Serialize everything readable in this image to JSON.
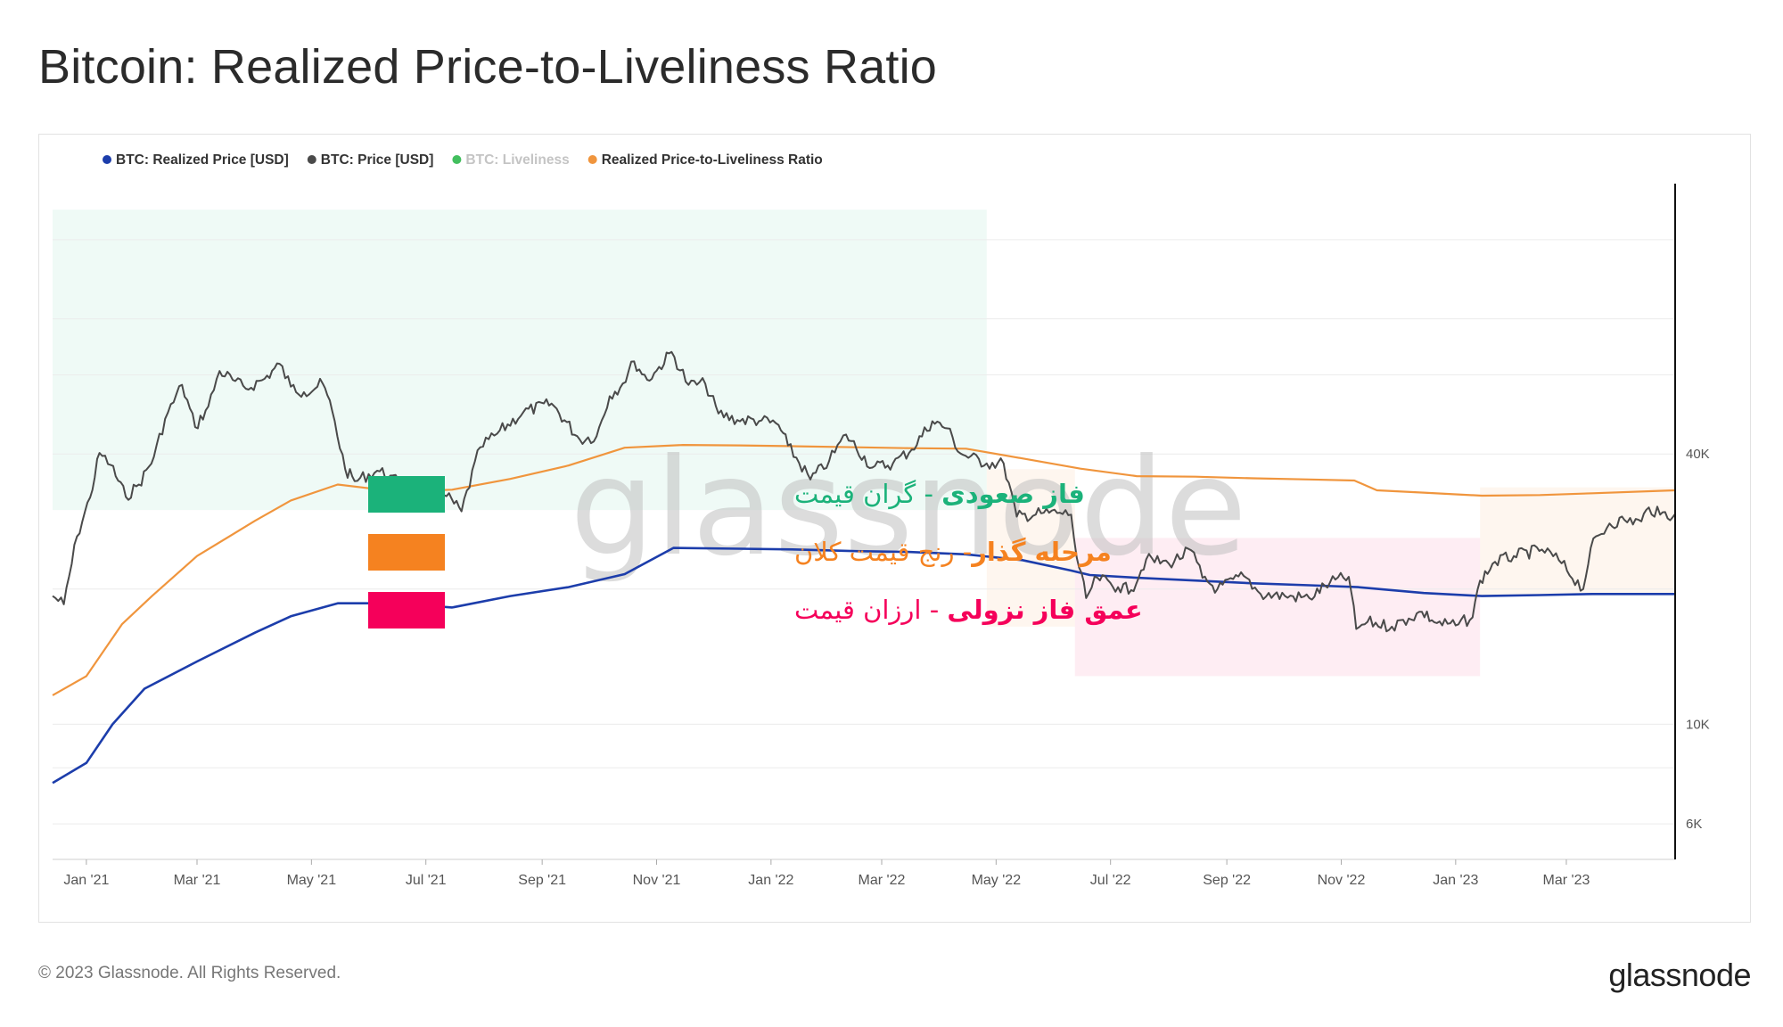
{
  "title": "Bitcoin: Realized Price-to-Liveliness Ratio",
  "footer": {
    "copyright": "© 2023 Glassnode. All Rights Reserved.",
    "logo": "glassnode"
  },
  "watermark": "glassnode",
  "colors": {
    "realized_price": "#1c3dab",
    "price": "#4a4a4a",
    "liveliness": "#2db84d",
    "ratio": "#f0953d",
    "zone_green": "#1bb27a",
    "zone_orange": "#f58220",
    "zone_pink": "#f5005a"
  },
  "annotations": [
    {
      "bold": "فاز صعودی",
      "sep": " - ",
      "text": "گران قیمت",
      "color": "#1bb27a"
    },
    {
      "bold": "مرحله گذار",
      "sep": "- ",
      "text": "رنج قیمت کلان",
      "color": "#f58220"
    },
    {
      "bold": "عمق فاز نزولی",
      "sep": " - ",
      "text": "ارزان قیمت",
      "color": "#f5005a"
    }
  ],
  "chart_data": {
    "type": "line",
    "title": "Bitcoin: Realized Price-to-Liveliness Ratio",
    "xlabel": "",
    "ylabel": "",
    "y_scale": "log",
    "ylim": [
      5000,
      160000
    ],
    "x_range": [
      "2020-12-14",
      "2023-04-28"
    ],
    "grid": true,
    "legend_position": "top-left",
    "legend": [
      {
        "name": "BTC: Realized Price [USD]",
        "color": "#1c3dab",
        "enabled": true
      },
      {
        "name": "BTC: Price [USD]",
        "color": "#4a4a4a",
        "enabled": true
      },
      {
        "name": "BTC: Liveliness",
        "color": "#2db84d",
        "enabled": false
      },
      {
        "name": "Realized Price-to-Liveliness Ratio",
        "color": "#f0953d",
        "enabled": true
      }
    ],
    "x_ticks": [
      {
        "label": "Jan '21",
        "date": "2021-01-01"
      },
      {
        "label": "Mar '21",
        "date": "2021-03-01"
      },
      {
        "label": "May '21",
        "date": "2021-05-01"
      },
      {
        "label": "Jul '21",
        "date": "2021-07-01"
      },
      {
        "label": "Sep '21",
        "date": "2021-09-01"
      },
      {
        "label": "Nov '21",
        "date": "2021-11-01"
      },
      {
        "label": "Jan '22",
        "date": "2022-01-01"
      },
      {
        "label": "Mar '22",
        "date": "2022-03-01"
      },
      {
        "label": "May '22",
        "date": "2022-05-01"
      },
      {
        "label": "Jul '22",
        "date": "2022-07-01"
      },
      {
        "label": "Sep '22",
        "date": "2022-09-01"
      },
      {
        "label": "Nov '22",
        "date": "2022-11-01"
      },
      {
        "label": "Jan '23",
        "date": "2023-01-01"
      },
      {
        "label": "Mar '23",
        "date": "2023-03-01"
      }
    ],
    "y_ticks": [
      {
        "label": "6K",
        "value": 6000
      },
      {
        "label": "10K",
        "value": 10000
      },
      {
        "label": "40K",
        "value": 40000
      }
    ],
    "zones": [
      {
        "name": "bull",
        "start": "2020-12-14",
        "end": "2022-04-26",
        "y_low": 30000,
        "y_high": 140000,
        "color": "#1bb27a"
      },
      {
        "name": "transition-1",
        "start": "2022-04-26",
        "end": "2022-06-12",
        "y_low": 16500,
        "y_high": 37000,
        "color": "#f58220"
      },
      {
        "name": "bear-depth",
        "start": "2022-06-12",
        "end": "2023-01-14",
        "y_low": 12800,
        "y_high": 26000,
        "color": "#f5005a"
      },
      {
        "name": "transition-2",
        "start": "2023-01-14",
        "end": "2023-04-28",
        "y_low": 19400,
        "y_high": 33700,
        "color": "#f58220"
      }
    ],
    "series": [
      {
        "name": "BTC: Price [USD]",
        "x": [
          "2020-12-14",
          "2020-12-20",
          "2020-12-27",
          "2021-01-03",
          "2021-01-08",
          "2021-01-14",
          "2021-01-22",
          "2021-01-29",
          "2021-02-06",
          "2021-02-12",
          "2021-02-21",
          "2021-02-28",
          "2021-03-07",
          "2021-03-13",
          "2021-03-20",
          "2021-03-27",
          "2021-04-06",
          "2021-04-14",
          "2021-04-20",
          "2021-04-27",
          "2021-05-07",
          "2021-05-12",
          "2021-05-19",
          "2021-05-24",
          "2021-06-05",
          "2021-06-12",
          "2021-06-22",
          "2021-07-01",
          "2021-07-12",
          "2021-07-20",
          "2021-07-30",
          "2021-08-08",
          "2021-08-22",
          "2021-09-06",
          "2021-09-21",
          "2021-09-30",
          "2021-10-07",
          "2021-10-14",
          "2021-10-20",
          "2021-10-27",
          "2021-11-01",
          "2021-11-09",
          "2021-11-18",
          "2021-11-27",
          "2021-12-04",
          "2021-12-14",
          "2021-12-27",
          "2022-01-05",
          "2022-01-10",
          "2022-01-22",
          "2022-02-01",
          "2022-02-10",
          "2022-02-24",
          "2022-03-07",
          "2022-03-17",
          "2022-03-28",
          "2022-04-05",
          "2022-04-12",
          "2022-04-26",
          "2022-05-05",
          "2022-05-12",
          "2022-05-25",
          "2022-06-04",
          "2022-06-10",
          "2022-06-13",
          "2022-06-18",
          "2022-06-24",
          "2022-07-05",
          "2022-07-12",
          "2022-07-20",
          "2022-08-01",
          "2022-08-13",
          "2022-08-19",
          "2022-08-27",
          "2022-09-10",
          "2022-09-19",
          "2022-10-02",
          "2022-10-15",
          "2022-10-26",
          "2022-11-05",
          "2022-11-09",
          "2022-11-15",
          "2022-11-28",
          "2022-12-07",
          "2022-12-14",
          "2022-12-22",
          "2023-01-01",
          "2023-01-10",
          "2023-01-14",
          "2023-01-22",
          "2023-02-01",
          "2023-02-16",
          "2023-02-25",
          "2023-03-10",
          "2023-03-14",
          "2023-03-24",
          "2023-04-01",
          "2023-04-10",
          "2023-04-14",
          "2023-04-20",
          "2023-04-28"
        ],
        "values": [
          19300,
          18500,
          26200,
          32000,
          40200,
          37800,
          32100,
          34200,
          39400,
          47900,
          57000,
          45900,
          51000,
          61200,
          58500,
          55900,
          58800,
          63500,
          56500,
          54900,
          57400,
          50000,
          37000,
          34800,
          36700,
          35800,
          32500,
          33600,
          32200,
          29800,
          41400,
          44400,
          49600,
          51800,
          43100,
          43800,
          53800,
          57400,
          64300,
          58500,
          61300,
          67500,
          57000,
          57300,
          49200,
          47600,
          47500,
          46400,
          41800,
          35100,
          38600,
          44200,
          37300,
          38100,
          40900,
          47300,
          45600,
          40100,
          38100,
          38100,
          29000,
          29500,
          29600,
          29300,
          23500,
          19100,
          21200,
          20200,
          19900,
          23300,
          22800,
          24400,
          21200,
          20000,
          21400,
          19500,
          19300,
          19100,
          20700,
          21300,
          16300,
          16900,
          16500,
          17200,
          17800,
          16800,
          16600,
          17300,
          20900,
          23000,
          23700,
          24500,
          23200,
          20000,
          24700,
          28000,
          28500,
          28300,
          30400,
          29300,
          29400
        ],
        "enabled": true
      },
      {
        "name": "BTC: Realized Price [USD]",
        "x": [
          "2020-12-14",
          "2021-01-01",
          "2021-01-15",
          "2021-02-01",
          "2021-03-01",
          "2021-04-01",
          "2021-04-20",
          "2021-05-15",
          "2021-06-15",
          "2021-07-15",
          "2021-08-15",
          "2021-09-15",
          "2021-10-15",
          "2021-11-10",
          "2021-12-15",
          "2022-01-15",
          "2022-02-15",
          "2022-03-15",
          "2022-04-15",
          "2022-05-15",
          "2022-06-10",
          "2022-06-20",
          "2022-07-15",
          "2022-08-15",
          "2022-09-15",
          "2022-10-15",
          "2022-11-10",
          "2022-12-15",
          "2023-01-15",
          "2023-02-15",
          "2023-03-15",
          "2023-04-28"
        ],
        "values": [
          7400,
          8200,
          10000,
          12000,
          13800,
          16000,
          17400,
          18600,
          18600,
          18200,
          19300,
          20200,
          21600,
          24700,
          24600,
          24500,
          24300,
          24200,
          23900,
          23200,
          22000,
          21500,
          21200,
          20900,
          20600,
          20400,
          20200,
          19600,
          19300,
          19400,
          19500,
          19500
        ],
        "enabled": true
      },
      {
        "name": "Realized Price-to-Liveliness Ratio",
        "x": [
          "2020-12-14",
          "2021-01-01",
          "2021-01-20",
          "2021-02-05",
          "2021-03-01",
          "2021-04-01",
          "2021-04-20",
          "2021-05-15",
          "2021-06-15",
          "2021-07-15",
          "2021-08-15",
          "2021-09-15",
          "2021-10-15",
          "2021-11-15",
          "2021-12-15",
          "2022-01-15",
          "2022-02-15",
          "2022-03-15",
          "2022-04-15",
          "2022-05-15",
          "2022-06-15",
          "2022-07-15",
          "2022-08-15",
          "2022-09-15",
          "2022-10-15",
          "2022-11-08",
          "2022-11-20",
          "2022-12-15",
          "2023-01-15",
          "2023-02-15",
          "2023-03-15",
          "2023-04-28"
        ],
        "values": [
          11600,
          12800,
          16700,
          19300,
          23700,
          28400,
          31500,
          34200,
          33000,
          33300,
          35200,
          37700,
          41300,
          41900,
          41800,
          41600,
          41400,
          41200,
          41100,
          39100,
          37100,
          35700,
          35600,
          35300,
          35100,
          34900,
          33200,
          32800,
          32300,
          32400,
          32700,
          33200
        ],
        "enabled": true
      }
    ]
  }
}
